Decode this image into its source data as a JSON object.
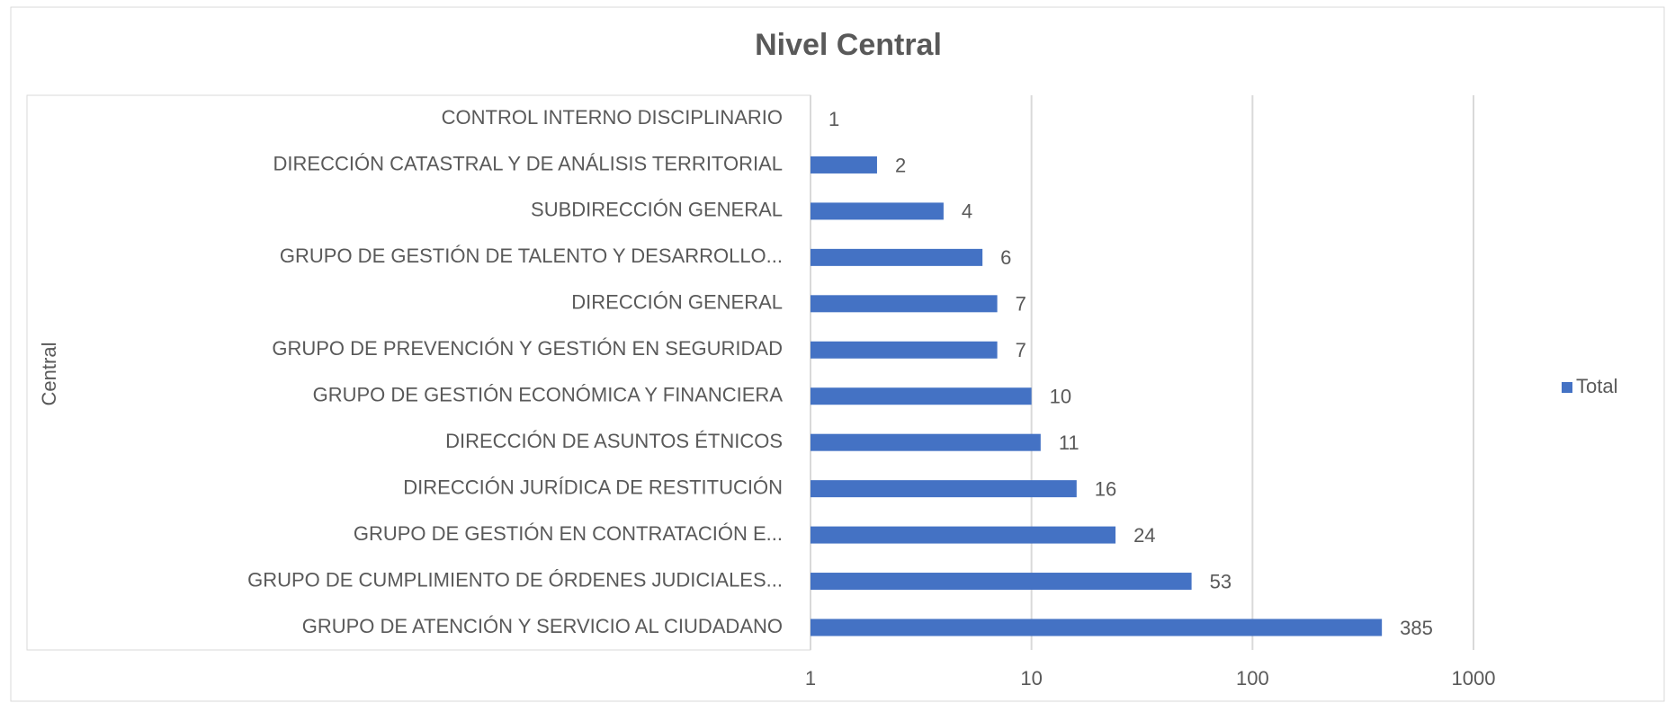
{
  "chart_data": {
    "type": "hbar",
    "title": "Nivel Central",
    "y_label": "Central",
    "categories": [
      "CONTROL INTERNO DISCIPLINARIO",
      "DIRECCIÓN CATASTRAL Y DE ANÁLISIS TERRITORIAL",
      "SUBDIRECCIÓN GENERAL",
      "GRUPO DE GESTIÓN DE TALENTO Y DESARROLLO...",
      "DIRECCIÓN GENERAL",
      "GRUPO DE PREVENCIÓN Y GESTIÓN EN SEGURIDAD",
      "GRUPO DE GESTIÓN ECONÓMICA Y FINANCIERA",
      "DIRECCIÓN DE ASUNTOS ÉTNICOS",
      "DIRECCIÓN JURÍDICA DE RESTITUCIÓN",
      "GRUPO DE GESTIÓN EN CONTRATACIÓN E...",
      "GRUPO DE CUMPLIMIENTO DE ÓRDENES JUDICIALES...",
      "GRUPO DE ATENCIÓN Y SERVICIO AL CIUDADANO"
    ],
    "series": [
      {
        "name": "Total",
        "color": "#4472c4",
        "values": [
          1,
          2,
          4,
          6,
          7,
          7,
          10,
          11,
          16,
          24,
          53,
          385
        ]
      }
    ],
    "xlim": [
      1,
      1000
    ],
    "xticks": [
      1,
      10,
      100,
      1000
    ],
    "log_scale": true,
    "grid": true,
    "legend": "right"
  }
}
